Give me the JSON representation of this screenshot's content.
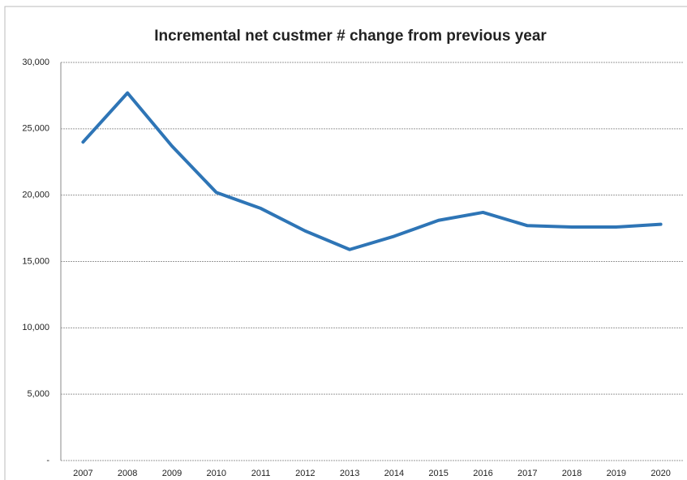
{
  "chart_data": {
    "type": "line",
    "title": "Incremental net custmer # change from previous year",
    "categories": [
      "2007",
      "2008",
      "2009",
      "2010",
      "2011",
      "2012",
      "2013",
      "2014",
      "2015",
      "2016",
      "2017",
      "2018",
      "2019",
      "2020"
    ],
    "values": [
      24000,
      27700,
      23700,
      20200,
      19000,
      17300,
      15900,
      16900,
      18100,
      18700,
      17700,
      17600,
      17600,
      17800
    ],
    "color": "#2e75b6",
    "ylim": [
      0,
      30000
    ],
    "yticks": [
      {
        "value": 0,
        "label": "-"
      },
      {
        "value": 5000,
        "label": "5,000"
      },
      {
        "value": 10000,
        "label": "10,000"
      },
      {
        "value": 15000,
        "label": "15,000"
      },
      {
        "value": 20000,
        "label": "20,000"
      },
      {
        "value": 25000,
        "label": "25,000"
      },
      {
        "value": 30000,
        "label": "30,000"
      }
    ],
    "grid": true
  }
}
